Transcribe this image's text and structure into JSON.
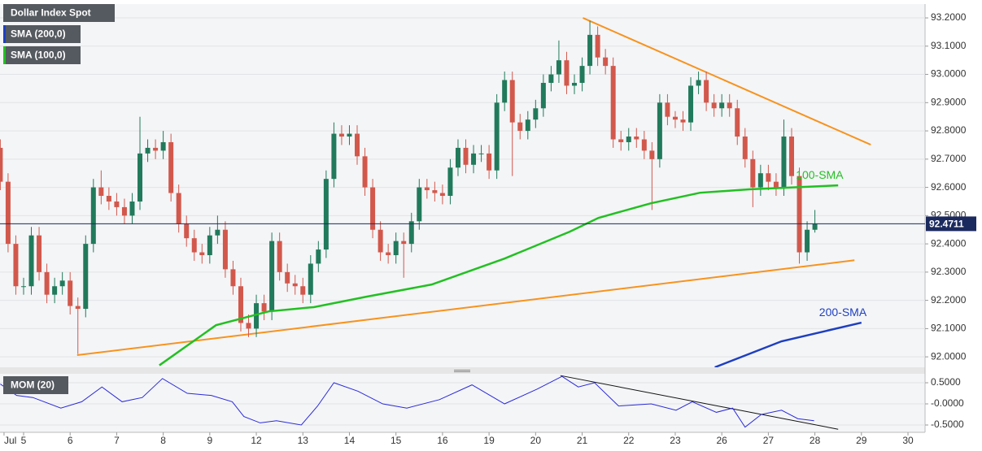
{
  "chart_data": [
    {
      "type": "candlestick",
      "title": "Dollar Index Spot",
      "x": [
        0,
        1,
        2,
        3,
        4,
        5,
        6,
        7,
        8,
        9,
        10,
        11,
        12,
        13,
        14,
        15,
        16,
        17,
        18,
        19,
        20,
        21,
        22,
        23,
        24,
        25,
        26,
        27,
        28,
        29,
        30,
        31,
        32,
        33,
        34,
        35,
        36,
        37,
        38,
        39,
        40,
        41,
        42,
        43,
        44,
        45,
        46,
        47,
        48,
        49,
        50,
        51,
        52,
        53,
        54,
        55,
        56,
        57,
        58,
        59,
        60,
        61,
        62,
        63,
        64,
        65,
        66,
        67,
        68,
        69,
        70,
        71,
        72,
        73,
        74,
        75,
        76,
        77,
        78,
        79,
        80,
        81,
        82,
        83,
        84,
        85,
        86,
        87,
        88,
        89,
        90,
        91,
        92,
        93,
        94,
        95,
        96,
        97,
        98,
        99,
        100,
        101,
        102,
        103,
        104,
        105
      ],
      "open": [
        92.74,
        92.62,
        92.4,
        92.25,
        92.25,
        92.43,
        92.3,
        92.22,
        92.25,
        92.27,
        92.18,
        92.17,
        92.4,
        92.6,
        92.57,
        92.55,
        92.53,
        92.5,
        92.55,
        92.72,
        92.74,
        92.73,
        92.76,
        92.58,
        92.47,
        92.42,
        92.37,
        92.36,
        92.43,
        92.45,
        92.31,
        92.25,
        92.12,
        92.1,
        92.19,
        92.16,
        92.41,
        92.3,
        92.26,
        92.25,
        92.22,
        92.33,
        92.38,
        92.63,
        92.79,
        92.78,
        92.79,
        92.71,
        92.6,
        92.45,
        92.37,
        92.36,
        92.41,
        92.4,
        92.48,
        92.6,
        92.59,
        92.58,
        92.57,
        92.67,
        92.74,
        92.68,
        92.72,
        92.72,
        92.66,
        92.9,
        92.98,
        92.83,
        92.8,
        92.84,
        92.88,
        92.97,
        93.0,
        93.05,
        92.96,
        92.97,
        93.03,
        93.14,
        93.06,
        93.03,
        92.77,
        92.76,
        92.78,
        92.77,
        92.73,
        92.7,
        92.9,
        92.85,
        92.84,
        92.83,
        92.96,
        92.98,
        92.9,
        92.88,
        92.9,
        92.88,
        92.78,
        92.7,
        92.6,
        92.65,
        92.62,
        92.6,
        92.78,
        92.64,
        92.37,
        92.45
      ],
      "high": [
        92.77,
        92.65,
        92.43,
        92.28,
        92.46,
        92.46,
        92.33,
        92.28,
        92.3,
        92.3,
        92.21,
        92.43,
        92.63,
        92.66,
        92.6,
        92.58,
        92.56,
        92.58,
        92.85,
        92.77,
        92.77,
        92.8,
        92.79,
        92.61,
        92.5,
        92.45,
        92.4,
        92.46,
        92.5,
        92.48,
        92.34,
        92.28,
        92.15,
        92.22,
        92.22,
        92.44,
        92.44,
        92.33,
        92.29,
        92.28,
        92.36,
        92.41,
        92.66,
        92.83,
        92.82,
        92.82,
        92.82,
        92.74,
        92.63,
        92.48,
        92.4,
        92.44,
        92.44,
        92.51,
        92.63,
        92.63,
        92.62,
        92.61,
        92.7,
        92.77,
        92.77,
        92.75,
        92.75,
        92.75,
        92.93,
        93.01,
        93.01,
        92.86,
        92.87,
        92.91,
        93.0,
        93.03,
        93.12,
        93.08,
        93.0,
        93.06,
        93.19,
        93.17,
        93.09,
        93.06,
        92.8,
        92.81,
        92.81,
        92.8,
        92.76,
        92.93,
        92.93,
        92.87,
        92.87,
        92.99,
        93.01,
        93.01,
        92.93,
        92.93,
        92.93,
        92.91,
        92.81,
        92.73,
        92.68,
        92.68,
        92.65,
        92.84,
        92.81,
        92.67,
        92.48,
        92.52
      ],
      "low": [
        92.59,
        92.37,
        92.22,
        92.22,
        92.22,
        92.27,
        92.19,
        92.19,
        92.22,
        92.15,
        92.01,
        92.14,
        92.37,
        92.54,
        92.52,
        92.5,
        92.47,
        92.47,
        92.52,
        92.69,
        92.7,
        92.7,
        92.55,
        92.44,
        92.39,
        92.34,
        92.33,
        92.33,
        92.4,
        92.28,
        92.22,
        92.09,
        92.07,
        92.07,
        92.13,
        92.13,
        92.27,
        92.23,
        92.22,
        92.19,
        92.19,
        92.3,
        92.35,
        92.6,
        92.75,
        92.75,
        92.68,
        92.57,
        92.42,
        92.34,
        92.33,
        92.33,
        92.28,
        92.37,
        92.45,
        92.56,
        92.55,
        92.54,
        92.54,
        92.64,
        92.65,
        92.65,
        92.69,
        92.63,
        92.63,
        92.87,
        92.64,
        92.77,
        92.77,
        92.81,
        92.85,
        92.94,
        92.97,
        92.93,
        92.93,
        92.94,
        93.0,
        93.03,
        93.0,
        92.74,
        92.73,
        92.73,
        92.74,
        92.7,
        92.52,
        92.67,
        92.82,
        92.81,
        92.8,
        92.8,
        92.93,
        92.87,
        92.85,
        92.85,
        92.85,
        92.75,
        92.67,
        92.53,
        92.57,
        92.59,
        92.57,
        92.57,
        92.61,
        92.33,
        92.34,
        92.44
      ],
      "close": [
        92.62,
        92.4,
        92.25,
        92.25,
        92.43,
        92.3,
        92.22,
        92.25,
        92.27,
        92.18,
        92.17,
        92.4,
        92.6,
        92.57,
        92.55,
        92.53,
        92.5,
        92.55,
        92.72,
        92.74,
        92.73,
        92.76,
        92.58,
        92.47,
        92.42,
        92.37,
        92.36,
        92.43,
        92.45,
        92.31,
        92.25,
        92.12,
        92.1,
        92.19,
        92.16,
        92.41,
        92.3,
        92.26,
        92.25,
        92.22,
        92.33,
        92.38,
        92.63,
        92.79,
        92.78,
        92.79,
        92.71,
        92.6,
        92.45,
        92.37,
        92.36,
        92.41,
        92.4,
        92.48,
        92.6,
        92.59,
        92.58,
        92.57,
        92.67,
        92.74,
        92.68,
        92.72,
        92.72,
        92.66,
        92.9,
        92.98,
        92.83,
        92.8,
        92.84,
        92.88,
        92.97,
        93.0,
        93.05,
        92.96,
        92.97,
        93.03,
        93.14,
        93.06,
        93.03,
        92.77,
        92.76,
        92.78,
        92.77,
        92.73,
        92.7,
        92.9,
        92.85,
        92.84,
        92.83,
        92.96,
        92.98,
        92.9,
        92.88,
        92.9,
        92.88,
        92.78,
        92.7,
        92.6,
        92.65,
        92.62,
        92.6,
        92.78,
        92.64,
        92.37,
        92.45,
        92.47
      ],
      "up_color": "#217a5b",
      "down_color": "#d2584c",
      "xlim": [
        -0.04,
        119.2
      ],
      "xticks": [
        {
          "value": 0.48,
          "label": "Jul"
        },
        {
          "value": 3,
          "label": "5"
        },
        {
          "value": 9,
          "label": "6"
        },
        {
          "value": 15,
          "label": "7"
        },
        {
          "value": 21,
          "label": "8"
        },
        {
          "value": 27,
          "label": "9"
        },
        {
          "value": 33,
          "label": "12"
        },
        {
          "value": 39,
          "label": "13"
        },
        {
          "value": 45,
          "label": "14"
        },
        {
          "value": 51,
          "label": "15"
        },
        {
          "value": 57,
          "label": "16"
        },
        {
          "value": 63,
          "label": "19"
        },
        {
          "value": 69,
          "label": "20"
        },
        {
          "value": 75,
          "label": "21"
        },
        {
          "value": 81,
          "label": "22"
        },
        {
          "value": 87,
          "label": "23"
        },
        {
          "value": 93,
          "label": "26"
        },
        {
          "value": 99,
          "label": "27"
        },
        {
          "value": 105,
          "label": "28"
        },
        {
          "value": 111,
          "label": "29"
        },
        {
          "value": 117,
          "label": "30"
        }
      ],
      "ylim": [
        91.963,
        93.249
      ],
      "yticks": [
        {
          "value": 92.0,
          "label": "92.0000"
        },
        {
          "value": 92.1,
          "label": "92.1000"
        },
        {
          "value": 92.2,
          "label": "92.2000"
        },
        {
          "value": 92.3,
          "label": "92.3000"
        },
        {
          "value": 92.4,
          "label": "92.4000"
        },
        {
          "value": 92.5,
          "label": "92.5000"
        },
        {
          "value": 92.6,
          "label": "92.6000"
        },
        {
          "value": 92.7,
          "label": "92.7000"
        },
        {
          "value": 92.8,
          "label": "92.8000"
        },
        {
          "value": 92.9,
          "label": "92.9000"
        },
        {
          "value": 93.0,
          "label": "93.0000"
        },
        {
          "value": 93.1,
          "label": "93.1000"
        },
        {
          "value": 93.2,
          "label": "93.2000"
        }
      ],
      "grid": true,
      "last_price": 92.4711,
      "last_price_color": "#1b2a5e",
      "series": [
        {
          "name": "SMA (200,0)",
          "label": "200-SMA",
          "color": "#1e3fc0",
          "x": [
            92.1,
            100.7,
            111.0
          ],
          "values": [
            91.963,
            92.055,
            92.121
          ]
        },
        {
          "name": "SMA (100,0)",
          "label": "100-SMA",
          "color": "#22c022",
          "x": [
            20.5,
            27.8,
            34.6,
            40.4,
            47.2,
            55.6,
            65.0,
            73.4,
            77.1,
            83.9,
            90.2,
            96.5,
            108.0
          ],
          "values": [
            91.97,
            92.112,
            92.161,
            92.176,
            92.213,
            92.256,
            92.348,
            92.443,
            92.492,
            92.544,
            92.581,
            92.593,
            92.607
          ]
        }
      ],
      "trend_lines": [
        {
          "color": "#f7931e",
          "x": [
            9.9,
            110.1
          ],
          "values": [
            92.006,
            92.342
          ]
        },
        {
          "color": "#f7931e",
          "x": [
            75.1,
            112.2
          ],
          "values": [
            93.2,
            92.751
          ]
        }
      ]
    },
    {
      "type": "line",
      "series": [
        {
          "name": "MOM (20)",
          "color": "#2a2ad8",
          "x": [
            0,
            2.1,
            4.2,
            7.8,
            10.5,
            13.1,
            15.7,
            18.3,
            20.9,
            24.1,
            27.2,
            29.9,
            31.4,
            33.5,
            35.6,
            38.8,
            40.9,
            43.0,
            46.1,
            49.3,
            52.4,
            56.6,
            60.8,
            65.0,
            69.2,
            72.4,
            74.5,
            76.6,
            79.7,
            83.9,
            87.1,
            89.2,
            92.3,
            94.4,
            96.0,
            98.1,
            100.7,
            102.8,
            104.9
          ],
          "values": [
            0.47,
            0.2,
            0.15,
            -0.1,
            0.05,
            0.4,
            0.05,
            0.15,
            0.6,
            0.25,
            0.2,
            0.05,
            -0.3,
            -0.45,
            -0.4,
            -0.5,
            -0.05,
            0.5,
            0.3,
            0.0,
            -0.1,
            0.1,
            0.45,
            0.0,
            0.35,
            0.65,
            0.4,
            0.5,
            -0.05,
            0.0,
            -0.15,
            0.05,
            -0.2,
            -0.1,
            -0.55,
            -0.25,
            -0.15,
            -0.35,
            -0.4
          ]
        }
      ],
      "xlim": [
        -0.04,
        119.2
      ],
      "ylim": [
        -0.673,
        0.712
      ],
      "yticks": [
        {
          "value": 0.5,
          "label": "0.5000"
        },
        {
          "value": 0,
          "label": "-0.0000"
        },
        {
          "value": -0.5,
          "label": "-0.5000"
        }
      ],
      "grid": true,
      "trend_lines": [
        {
          "color": "#111111",
          "x": [
            72.2,
            108.0
          ],
          "values": [
            0.67,
            -0.6
          ]
        }
      ]
    }
  ]
}
